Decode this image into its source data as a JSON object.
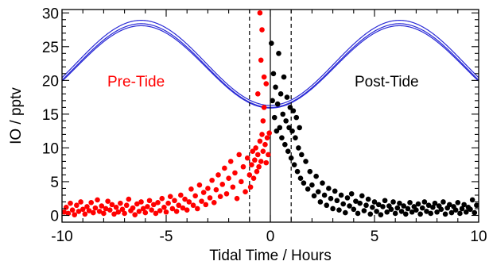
{
  "chart_data": {
    "type": "scatter",
    "xlabel": "Tidal Time / Hours",
    "ylabel": "IO / pptv",
    "xlim": [
      -10,
      10
    ],
    "ylim": [
      -1,
      30.5
    ],
    "x_ticks": [
      -10,
      -5,
      0,
      5,
      10
    ],
    "y_ticks": [
      0,
      5,
      10,
      15,
      20,
      25,
      30
    ],
    "grid": false,
    "annotations": [
      {
        "text": "Pre-Tide",
        "color": "#ff0000"
      },
      {
        "text": "Post-Tide",
        "color": "#000000"
      }
    ],
    "colors": {
      "pre_tide": "#ff0000",
      "post_tide": "#000000",
      "tide_curve": "#2b2bd6",
      "axes": "#000000"
    },
    "vertical_lines": [
      {
        "x": -1,
        "style": "dashed"
      },
      {
        "x": 0,
        "style": "solid"
      },
      {
        "x": 1,
        "style": "dashed"
      }
    ],
    "tide_curves": [
      {
        "mean": 22.2,
        "amplitude": 6.2,
        "period_hours": 12.4
      },
      {
        "mean": 22.0,
        "amplitude": 6.1,
        "period_hours": 12.4
      },
      {
        "mean": 22.6,
        "amplitude": 6.3,
        "period_hours": 12.4
      }
    ],
    "series": [
      {
        "name": "Pre-Tide",
        "color": "#ff0000",
        "points": [
          [
            -9.9,
            0.5
          ],
          [
            -9.8,
            1.2
          ],
          [
            -9.7,
            0.3
          ],
          [
            -9.6,
            1.8
          ],
          [
            -9.5,
            0.8
          ],
          [
            -9.4,
            0.1
          ],
          [
            -9.3,
            1.5
          ],
          [
            -9.2,
            0.6
          ],
          [
            -9.1,
            2.0
          ],
          [
            -9.0,
            0.9
          ],
          [
            -8.9,
            0.2
          ],
          [
            -8.8,
            1.3
          ],
          [
            -8.7,
            0.7
          ],
          [
            -8.6,
            1.9
          ],
          [
            -8.5,
            0.4
          ],
          [
            -8.4,
            1.1
          ],
          [
            -8.3,
            2.3
          ],
          [
            -8.2,
            0.6
          ],
          [
            -8.1,
            1.4
          ],
          [
            -8.0,
            0.3
          ],
          [
            -7.9,
            1.0
          ],
          [
            -7.8,
            2.1
          ],
          [
            -7.7,
            0.8
          ],
          [
            -7.6,
            1.6
          ],
          [
            -7.5,
            0.2
          ],
          [
            -7.4,
            1.2
          ],
          [
            -7.3,
            0.5
          ],
          [
            -7.2,
            1.8
          ],
          [
            -7.1,
            0.9
          ],
          [
            -7.0,
            0.3
          ],
          [
            -6.9,
            1.5
          ],
          [
            -6.8,
            2.4
          ],
          [
            -6.7,
            0.7
          ],
          [
            -6.6,
            1.1
          ],
          [
            -6.5,
            0.1
          ],
          [
            -6.4,
            1.7
          ],
          [
            -6.3,
            0.6
          ],
          [
            -6.2,
            2.0
          ],
          [
            -6.1,
            1.0
          ],
          [
            -6.0,
            0.4
          ],
          [
            -5.9,
            1.3
          ],
          [
            -5.8,
            2.2
          ],
          [
            -5.7,
            0.8
          ],
          [
            -5.6,
            1.6
          ],
          [
            -5.5,
            0.3
          ],
          [
            -5.4,
            1.9
          ],
          [
            -5.3,
            0.7
          ],
          [
            -5.2,
            2.5
          ],
          [
            -5.1,
            1.2
          ],
          [
            -5.0,
            0.5
          ],
          [
            -4.9,
            1.8
          ],
          [
            -4.8,
            2.8
          ],
          [
            -4.7,
            1.0
          ],
          [
            -4.6,
            2.2
          ],
          [
            -4.5,
            0.6
          ],
          [
            -4.4,
            1.5
          ],
          [
            -4.3,
            3.0
          ],
          [
            -4.2,
            1.1
          ],
          [
            -4.1,
            2.4
          ],
          [
            -4.0,
            0.8
          ],
          [
            -3.9,
            2.0
          ],
          [
            -3.8,
            3.9
          ],
          [
            -3.7,
            1.5
          ],
          [
            -3.6,
            2.9
          ],
          [
            -3.5,
            1.0
          ],
          [
            -3.4,
            4.5
          ],
          [
            -3.3,
            2.1
          ],
          [
            -3.2,
            3.4
          ],
          [
            -3.1,
            1.6
          ],
          [
            -3.0,
            4.0
          ],
          [
            -2.9,
            2.6
          ],
          [
            -2.8,
            5.2
          ],
          [
            -2.7,
            1.9
          ],
          [
            -2.6,
            3.8
          ],
          [
            -2.5,
            6.0
          ],
          [
            -2.4,
            2.8
          ],
          [
            -2.3,
            4.6
          ],
          [
            -2.2,
            7.0
          ],
          [
            -2.1,
            3.2
          ],
          [
            -2.0,
            5.5
          ],
          [
            -1.9,
            8.0
          ],
          [
            -1.8,
            4.2
          ],
          [
            -1.7,
            6.3
          ],
          [
            -1.6,
            2.5
          ],
          [
            -1.5,
            9.0
          ],
          [
            -1.4,
            5.0
          ],
          [
            -1.3,
            7.2
          ],
          [
            -1.2,
            3.5
          ],
          [
            -1.1,
            8.5
          ],
          [
            -1.0,
            6.0
          ],
          [
            -0.95,
            4.2
          ],
          [
            -0.9,
            7.5
          ],
          [
            -0.85,
            9.5
          ],
          [
            -0.8,
            5.5
          ],
          [
            -0.75,
            8.2
          ],
          [
            -0.7,
            10.0
          ],
          [
            -0.65,
            6.5
          ],
          [
            -0.6,
            9.0
          ],
          [
            -0.55,
            7.2
          ],
          [
            -0.5,
            11.0
          ],
          [
            -0.45,
            8.0
          ],
          [
            -0.4,
            12.0
          ],
          [
            -0.35,
            9.5
          ],
          [
            -0.3,
            20.5
          ],
          [
            -0.25,
            10.5
          ],
          [
            -0.2,
            7.8
          ],
          [
            -0.15,
            11.5
          ],
          [
            -0.1,
            9.0
          ],
          [
            -0.05,
            12.2
          ],
          [
            -0.4,
            27.5
          ],
          [
            -0.5,
            30.0
          ],
          [
            -0.2,
            19.5
          ],
          [
            -0.3,
            16.0
          ],
          [
            -0.6,
            18.0
          ],
          [
            -0.45,
            23.0
          ],
          [
            -0.35,
            14.0
          ]
        ]
      },
      {
        "name": "Post-Tide",
        "color": "#000000",
        "points": [
          [
            0.05,
            25.5
          ],
          [
            0.1,
            17.0
          ],
          [
            0.15,
            21.0
          ],
          [
            0.2,
            14.5
          ],
          [
            0.25,
            19.0
          ],
          [
            0.3,
            12.5
          ],
          [
            0.35,
            16.5
          ],
          [
            0.4,
            24.0
          ],
          [
            0.45,
            13.0
          ],
          [
            0.5,
            18.0
          ],
          [
            0.55,
            11.5
          ],
          [
            0.6,
            15.0
          ],
          [
            0.65,
            20.5
          ],
          [
            0.7,
            10.5
          ],
          [
            0.75,
            14.0
          ],
          [
            0.8,
            17.5
          ],
          [
            0.85,
            9.5
          ],
          [
            0.9,
            13.0
          ],
          [
            0.95,
            16.0
          ],
          [
            1.0,
            8.5
          ],
          [
            1.05,
            12.5
          ],
          [
            1.1,
            15.5
          ],
          [
            1.15,
            7.5
          ],
          [
            1.2,
            11.5
          ],
          [
            1.25,
            14.5
          ],
          [
            1.3,
            6.5
          ],
          [
            1.35,
            10.0
          ],
          [
            1.4,
            13.0
          ],
          [
            1.45,
            5.5
          ],
          [
            1.5,
            9.0
          ],
          [
            1.6,
            4.8
          ],
          [
            1.7,
            8.0
          ],
          [
            1.8,
            3.9
          ],
          [
            1.9,
            6.5
          ],
          [
            2.0,
            4.5
          ],
          [
            2.1,
            2.9
          ],
          [
            2.2,
            5.8
          ],
          [
            2.3,
            3.5
          ],
          [
            2.4,
            2.0
          ],
          [
            2.5,
            4.8
          ],
          [
            2.6,
            3.0
          ],
          [
            2.7,
            1.5
          ],
          [
            2.8,
            4.0
          ],
          [
            2.9,
            2.5
          ],
          [
            3.0,
            1.0
          ],
          [
            3.1,
            3.6
          ],
          [
            3.2,
            2.2
          ],
          [
            3.3,
            0.8
          ],
          [
            3.4,
            3.0
          ],
          [
            3.5,
            1.7
          ],
          [
            3.6,
            0.4
          ],
          [
            3.7,
            2.6
          ],
          [
            3.8,
            1.4
          ],
          [
            3.9,
            3.2
          ],
          [
            4.0,
            0.9
          ],
          [
            4.1,
            2.1
          ],
          [
            4.2,
            0.3
          ],
          [
            4.3,
            1.8
          ],
          [
            4.4,
            2.9
          ],
          [
            4.5,
            0.7
          ],
          [
            4.6,
            1.5
          ],
          [
            4.7,
            2.4
          ],
          [
            4.8,
            0.2
          ],
          [
            4.9,
            1.2
          ],
          [
            5.0,
            2.0
          ],
          [
            5.1,
            0.6
          ],
          [
            5.2,
            1.6
          ],
          [
            5.3,
            0.1
          ],
          [
            5.4,
            1.3
          ],
          [
            5.5,
            2.2
          ],
          [
            5.6,
            0.5
          ],
          [
            5.7,
            1.4
          ],
          [
            5.8,
            0.9
          ],
          [
            5.9,
            2.0
          ],
          [
            6.0,
            0.3
          ],
          [
            6.1,
            1.1
          ],
          [
            6.2,
            1.8
          ],
          [
            6.3,
            0.6
          ],
          [
            6.4,
            1.4
          ],
          [
            6.5,
            0.2
          ],
          [
            6.6,
            1.0
          ],
          [
            6.7,
            1.9
          ],
          [
            6.8,
            0.5
          ],
          [
            6.9,
            1.3
          ],
          [
            7.0,
            0.8
          ],
          [
            7.1,
            1.7
          ],
          [
            7.2,
            0.2
          ],
          [
            7.3,
            1.1
          ],
          [
            7.4,
            2.0
          ],
          [
            7.5,
            0.6
          ],
          [
            7.6,
            1.5
          ],
          [
            7.7,
            0.3
          ],
          [
            7.8,
            1.2
          ],
          [
            7.9,
            1.8
          ],
          [
            8.0,
            0.5
          ],
          [
            8.1,
            1.4
          ],
          [
            8.2,
            0.9
          ],
          [
            8.3,
            2.0
          ],
          [
            8.4,
            0.2
          ],
          [
            8.5,
            1.1
          ],
          [
            8.6,
            1.6
          ],
          [
            8.7,
            0.4
          ],
          [
            8.8,
            1.3
          ],
          [
            8.9,
            0.8
          ],
          [
            9.0,
            1.9
          ],
          [
            9.1,
            0.3
          ],
          [
            9.2,
            1.0
          ],
          [
            9.3,
            1.6
          ],
          [
            9.4,
            0.5
          ],
          [
            9.5,
            1.2
          ],
          [
            9.6,
            0.9
          ],
          [
            9.7,
            2.3
          ],
          [
            9.8,
            0.4
          ],
          [
            9.9,
            1.5
          ]
        ]
      }
    ]
  }
}
